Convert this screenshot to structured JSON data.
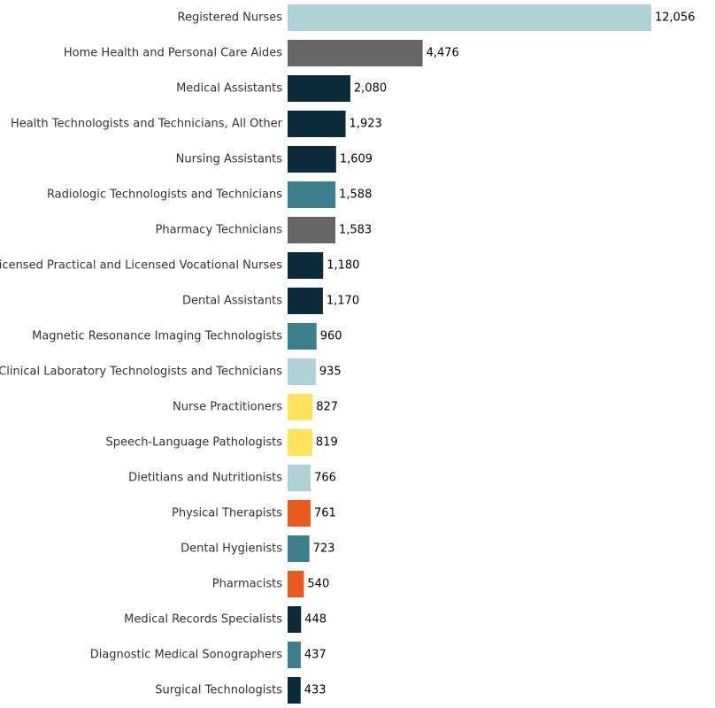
{
  "chart_data": {
    "type": "bar",
    "orientation": "horizontal",
    "title": "",
    "xlabel": "",
    "ylabel": "",
    "xlim": [
      0,
      12056
    ],
    "categories": [
      "Registered Nurses",
      "Home Health and Personal Care Aides",
      "Medical Assistants",
      "Health Technologists and Technicians, All Other",
      "Nursing Assistants",
      "Radiologic Technologists and Technicians",
      "Pharmacy Technicians",
      "Licensed Practical and Licensed Vocational Nurses",
      "Dental Assistants",
      "Magnetic Resonance Imaging Technologists",
      "Clinical Laboratory Technologists and Technicians",
      "Nurse Practitioners",
      "Speech-Language Pathologists",
      "Dietitians and Nutritionists",
      "Physical Therapists",
      "Dental Hygienists",
      "Pharmacists",
      "Medical Records Specialists",
      "Diagnostic Medical Sonographers",
      "Surgical Technologists"
    ],
    "values": [
      12056,
      4476,
      2080,
      1923,
      1609,
      1588,
      1583,
      1180,
      1170,
      960,
      935,
      827,
      819,
      766,
      761,
      723,
      540,
      448,
      437,
      433
    ],
    "value_labels": [
      "12,056",
      "4,476",
      "2,080",
      "1,923",
      "1,609",
      "1,588",
      "1,583",
      "1,180",
      "1,170",
      "960",
      "935",
      "827",
      "819",
      "766",
      "761",
      "723",
      "540",
      "448",
      "437",
      "433"
    ],
    "colors": [
      "#aed2d6",
      "#666666",
      "#0b2a3a",
      "#0b2a3a",
      "#0b2a3a",
      "#3d7f8c",
      "#666666",
      "#0b2a3a",
      "#0b2a3a",
      "#3d7f8c",
      "#aed2d6",
      "#fde25a",
      "#fde25a",
      "#aed2d6",
      "#e85b1c",
      "#3d7f8c",
      "#e85b1c",
      "#0b2a3a",
      "#3d7f8c",
      "#0b2a3a"
    ],
    "grid": false,
    "legend": "none"
  }
}
